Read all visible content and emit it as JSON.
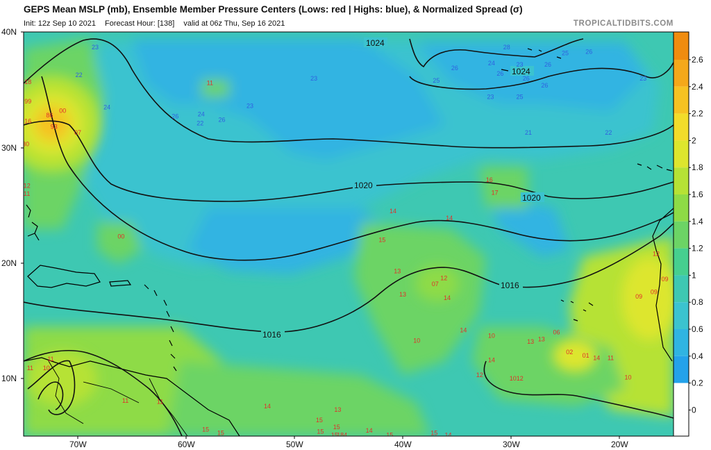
{
  "header": {
    "title": "GEPS Mean MSLP (mb), Ensemble Member Pressure Centers (Lows: red | Highs: blue), & Normalized Spread (σ)",
    "init": "Init: 12z Sep 10 2021",
    "forecast_hour": "Forecast Hour: [138]",
    "valid": "valid at 06z Thu, Sep 16 2021",
    "brand": "TROPICALTIDBITS.COM"
  },
  "axes": {
    "lat_labels": [
      "40N",
      "30N",
      "20N",
      "10N"
    ],
    "lon_labels": [
      "70W",
      "60W",
      "50W",
      "40W",
      "30W",
      "20W"
    ]
  },
  "isobars": [
    {
      "label": "1024"
    },
    {
      "label": "1024"
    },
    {
      "label": "1020"
    },
    {
      "label": "1020"
    },
    {
      "label": "1016"
    },
    {
      "label": "1016"
    }
  ],
  "colorbar": {
    "labels": [
      "2.6",
      "2.4",
      "2.2",
      "2",
      "1.8",
      "1.6",
      "1.4",
      "1.2",
      "1",
      "0.8",
      "0.6",
      "0.4",
      "0.2",
      "0"
    ],
    "colors": [
      "#f08c0f",
      "#f4a81a",
      "#f6c222",
      "#f2dc2a",
      "#dde62e",
      "#b6e235",
      "#8edb46",
      "#6cd465",
      "#46cf8f",
      "#3ec8b2",
      "#3bc3cf",
      "#30b4e2",
      "#24a2ea",
      "#ffffff"
    ]
  },
  "lows": [
    {
      "t": "18",
      "lon": -74.6,
      "lat": 35.5
    },
    {
      "t": "99",
      "lon": -74.6,
      "lat": 33.8
    },
    {
      "t": "16",
      "lon": -74.6,
      "lat": 32.1
    },
    {
      "t": "30",
      "lon": -74.8,
      "lat": 30.1
    },
    {
      "t": "12",
      "lon": -74.7,
      "lat": 26.5
    },
    {
      "t": "11",
      "lon": -74.7,
      "lat": 25.8
    },
    {
      "t": "00",
      "lon": -71.4,
      "lat": 33.0
    },
    {
      "t": "86",
      "lon": -72.6,
      "lat": 32.6
    },
    {
      "t": "93",
      "lon": -72.2,
      "lat": 31.6
    },
    {
      "t": "07",
      "lon": -70.0,
      "lat": 31.1
    },
    {
      "t": "11",
      "lon": -57.8,
      "lat": 35.4
    },
    {
      "t": "00",
      "lon": -66.0,
      "lat": 22.1
    },
    {
      "t": "16",
      "lon": -32.0,
      "lat": 27.0
    },
    {
      "t": "17",
      "lon": -31.5,
      "lat": 25.9
    },
    {
      "t": "14",
      "lon": -40.9,
      "lat": 24.3
    },
    {
      "t": "14",
      "lon": -35.7,
      "lat": 23.7
    },
    {
      "t": "15",
      "lon": -41.9,
      "lat": 21.8
    },
    {
      "t": "13",
      "lon": -40.5,
      "lat": 19.1
    },
    {
      "t": "12",
      "lon": -36.2,
      "lat": 18.5
    },
    {
      "t": "07",
      "lon": -37.0,
      "lat": 18.0
    },
    {
      "t": "13",
      "lon": -40.0,
      "lat": 17.1
    },
    {
      "t": "14",
      "lon": -35.9,
      "lat": 16.8
    },
    {
      "t": "14",
      "lon": -34.4,
      "lat": 14.0
    },
    {
      "t": "10",
      "lon": -38.7,
      "lat": 13.1
    },
    {
      "t": "10",
      "lon": -31.8,
      "lat": 13.5
    },
    {
      "t": "13",
      "lon": -28.2,
      "lat": 13.0
    },
    {
      "t": "13",
      "lon": -27.2,
      "lat": 13.2
    },
    {
      "t": "06",
      "lon": -25.8,
      "lat": 13.8
    },
    {
      "t": "14",
      "lon": -31.8,
      "lat": 11.4
    },
    {
      "t": "02",
      "lon": -24.6,
      "lat": 12.1
    },
    {
      "t": "01",
      "lon": -23.1,
      "lat": 11.8
    },
    {
      "t": "14",
      "lon": -22.1,
      "lat": 11.6
    },
    {
      "t": "11",
      "lon": -20.8,
      "lat": 11.6
    },
    {
      "t": "12",
      "lon": -32.9,
      "lat": 10.1
    },
    {
      "t": "1012",
      "lon": -29.5,
      "lat": 9.8
    },
    {
      "t": "10",
      "lon": -19.2,
      "lat": 9.9
    },
    {
      "t": "12",
      "lon": -16.6,
      "lat": 20.6
    },
    {
      "t": "09",
      "lon": -15.8,
      "lat": 18.4
    },
    {
      "t": "09",
      "lon": -16.8,
      "lat": 17.3
    },
    {
      "t": "09",
      "lon": -18.2,
      "lat": 16.9
    },
    {
      "t": "11",
      "lon": -72.5,
      "lat": 11.5
    },
    {
      "t": "11",
      "lon": -74.4,
      "lat": 10.7
    },
    {
      "t": "10",
      "lon": -72.9,
      "lat": 10.7
    },
    {
      "t": "11",
      "lon": -65.6,
      "lat": 7.9
    },
    {
      "t": "11",
      "lon": -62.4,
      "lat": 7.8
    },
    {
      "t": "14",
      "lon": -52.5,
      "lat": 7.4
    },
    {
      "t": "13",
      "lon": -46.0,
      "lat": 7.1
    },
    {
      "t": "15",
      "lon": -47.7,
      "lat": 6.2
    },
    {
      "t": "15",
      "lon": -46.1,
      "lat": 5.6
    },
    {
      "t": "15",
      "lon": -47.6,
      "lat": 5.2
    },
    {
      "t": "14",
      "lon": -43.1,
      "lat": 5.3
    },
    {
      "t": "15",
      "lon": -46.3,
      "lat": 4.9
    },
    {
      "t": "184",
      "lon": -45.6,
      "lat": 4.9
    },
    {
      "t": "15",
      "lon": -41.2,
      "lat": 4.9
    },
    {
      "t": "15",
      "lon": -37.1,
      "lat": 5.1
    },
    {
      "t": "14",
      "lon": -35.8,
      "lat": 4.9
    },
    {
      "t": "15",
      "lon": -58.2,
      "lat": 5.4
    },
    {
      "t": "15",
      "lon": -56.8,
      "lat": 5.1
    }
  ],
  "highs": [
    {
      "t": "23",
      "lon": -68.4,
      "lat": 38.5
    },
    {
      "t": "22",
      "lon": -69.9,
      "lat": 36.1
    },
    {
      "t": "24",
      "lon": -67.3,
      "lat": 33.3
    },
    {
      "t": "26",
      "lon": -61.0,
      "lat": 32.5
    },
    {
      "t": "24",
      "lon": -58.6,
      "lat": 32.7
    },
    {
      "t": "23",
      "lon": -54.1,
      "lat": 33.4
    },
    {
      "t": "22",
      "lon": -58.7,
      "lat": 31.9
    },
    {
      "t": "26",
      "lon": -56.7,
      "lat": 32.2
    },
    {
      "t": "23",
      "lon": -48.2,
      "lat": 35.8
    },
    {
      "t": "28",
      "lon": -30.4,
      "lat": 38.5
    },
    {
      "t": "25",
      "lon": -25.0,
      "lat": 38.0
    },
    {
      "t": "26",
      "lon": -22.8,
      "lat": 38.1
    },
    {
      "t": "24",
      "lon": -31.8,
      "lat": 37.1
    },
    {
      "t": "23",
      "lon": -29.2,
      "lat": 37.0
    },
    {
      "t": "26",
      "lon": -26.6,
      "lat": 37.0
    },
    {
      "t": "26",
      "lon": -35.2,
      "lat": 36.7
    },
    {
      "t": "26",
      "lon": -31.0,
      "lat": 36.2
    },
    {
      "t": "26",
      "lon": -28.6,
      "lat": 35.8
    },
    {
      "t": "25",
      "lon": -36.9,
      "lat": 35.6
    },
    {
      "t": "26",
      "lon": -26.9,
      "lat": 35.2
    },
    {
      "t": "23",
      "lon": -31.9,
      "lat": 34.2
    },
    {
      "t": "25",
      "lon": -29.2,
      "lat": 34.2
    },
    {
      "t": "23",
      "lon": -17.8,
      "lat": 35.8
    },
    {
      "t": "21",
      "lon": -28.4,
      "lat": 31.1
    },
    {
      "t": "22",
      "lon": -21.0,
      "lat": 31.1
    }
  ],
  "colors": {
    "background": "#3ec8b2",
    "isobar": "#111111",
    "low_text": "#e0302a",
    "high_text": "#2f5fe0",
    "coast": "#000000"
  }
}
